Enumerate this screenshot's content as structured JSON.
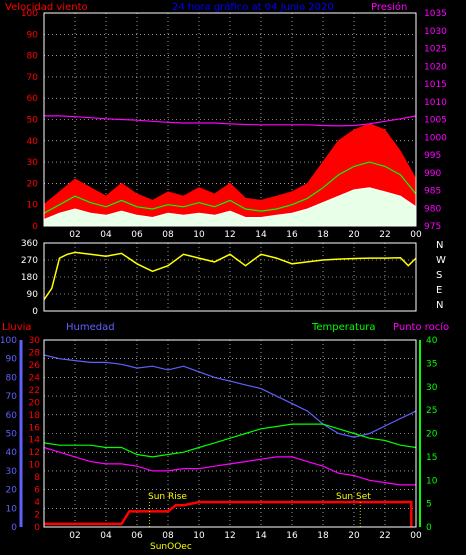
{
  "top_labels": {
    "wind": "Velocidad viento",
    "title": "24 hora gráfico at 04 Junio 2020",
    "pressure": "Presión"
  },
  "compass": [
    "N",
    "W",
    "S",
    "E",
    "N"
  ],
  "bottom_labels": {
    "rain": "Lluvia",
    "humidity": "Humedad",
    "temperature": "Temperatura",
    "dewpoint": "Punto rocío",
    "sunrise": "Sun Rise",
    "sunset": "Sun Set",
    "suncross": "SunOOec"
  },
  "colors": {
    "wind": "#ff0000",
    "title": "#0000ff",
    "pressure": "#ff00ff",
    "gust": "#ff0000",
    "avg": "#00ff00",
    "speed": "#ffffff",
    "direction": "#ffff00",
    "rain": "#ff0000",
    "humidity": "#6060ff",
    "temperature": "#00ff00",
    "dewpoint": "#ff00ff",
    "sun": "#ffff00"
  },
  "chart_data": [
    {
      "type": "line",
      "name": "wind-pressure",
      "x_ticks": [
        "02",
        "04",
        "06",
        "08",
        "10",
        "12",
        "14",
        "16",
        "18",
        "20",
        "22",
        "00"
      ],
      "y_left_ticks": [
        "0",
        "10",
        "20",
        "30",
        "40",
        "50",
        "60",
        "70",
        "80",
        "90",
        "100"
      ],
      "y_right_ticks": [
        "975",
        "980",
        "985",
        "990",
        "995",
        "1000",
        "1005",
        "1010",
        "1015",
        "1020",
        "1025",
        "1030",
        "1035"
      ],
      "ylim_left": [
        0,
        100
      ],
      "ylim_right": [
        975,
        1035
      ],
      "xlim": [
        0,
        24
      ],
      "series": [
        {
          "name": "Presión",
          "axis": "right",
          "x": [
            0,
            1,
            2,
            3,
            4,
            5,
            6,
            7,
            8,
            9,
            10,
            11,
            12,
            13,
            14,
            15,
            16,
            17,
            18,
            19,
            20,
            21,
            22,
            23,
            24
          ],
          "values": [
            1006,
            1006,
            1005.8,
            1005.5,
            1005.2,
            1005,
            1004.8,
            1004.5,
            1004.2,
            1004,
            1004,
            1004,
            1003.8,
            1003.6,
            1003.5,
            1003.5,
            1003.5,
            1003.5,
            1003.3,
            1003.2,
            1003.3,
            1003.8,
            1004.5,
            1005.2,
            1006
          ]
        },
        {
          "name": "gust",
          "axis": "left",
          "x": [
            0,
            1,
            2,
            3,
            4,
            5,
            6,
            7,
            8,
            9,
            10,
            11,
            12,
            13,
            14,
            15,
            16,
            17,
            18,
            19,
            20,
            21,
            22,
            23,
            24
          ],
          "values": [
            10,
            16,
            22,
            18,
            14,
            20,
            15,
            12,
            16,
            14,
            18,
            15,
            20,
            13,
            12,
            14,
            16,
            20,
            30,
            40,
            45,
            48,
            45,
            35,
            22
          ]
        },
        {
          "name": "average",
          "axis": "left",
          "x": [
            0,
            1,
            2,
            3,
            4,
            5,
            6,
            7,
            8,
            9,
            10,
            11,
            12,
            13,
            14,
            15,
            16,
            17,
            18,
            19,
            20,
            21,
            22,
            23,
            24
          ],
          "values": [
            6,
            10,
            14,
            11,
            9,
            12,
            9,
            8,
            10,
            9,
            11,
            9,
            12,
            8,
            7,
            8,
            10,
            13,
            18,
            24,
            28,
            30,
            28,
            24,
            15
          ]
        },
        {
          "name": "speed",
          "axis": "left",
          "x": [
            0,
            1,
            2,
            3,
            4,
            5,
            6,
            7,
            8,
            9,
            10,
            11,
            12,
            13,
            14,
            15,
            16,
            17,
            18,
            19,
            20,
            21,
            22,
            23,
            24
          ],
          "values": [
            3,
            6,
            8,
            6,
            5,
            7,
            5,
            4,
            6,
            5,
            6,
            5,
            7,
            4,
            4,
            5,
            6,
            8,
            11,
            14,
            17,
            18,
            16,
            14,
            9
          ]
        }
      ]
    },
    {
      "type": "line",
      "name": "wind-direction",
      "x_ticks": [
        "02",
        "04",
        "06",
        "08",
        "10",
        "12",
        "14",
        "16",
        "18",
        "20",
        "22",
        "00"
      ],
      "y_ticks": [
        "0",
        "90",
        "180",
        "270",
        "360"
      ],
      "ylim": [
        0,
        360
      ],
      "xlim": [
        0,
        24
      ],
      "series": [
        {
          "name": "direction",
          "x": [
            0,
            0.5,
            1,
            1.5,
            2,
            3,
            4,
            5,
            6,
            7,
            8,
            9,
            10,
            11,
            12,
            13,
            14,
            15,
            16,
            17,
            18,
            19,
            20,
            21,
            22,
            23,
            23.5,
            24
          ],
          "values": [
            60,
            120,
            280,
            300,
            310,
            300,
            290,
            305,
            250,
            210,
            240,
            300,
            280,
            260,
            300,
            240,
            300,
            280,
            250,
            260,
            270,
            275,
            278,
            280,
            280,
            282,
            240,
            280
          ]
        }
      ]
    },
    {
      "type": "line",
      "name": "rain-humidity-temperature",
      "x_ticks": [
        "02",
        "04",
        "06",
        "08",
        "10",
        "12",
        "14",
        "16",
        "18",
        "20",
        "22",
        "00"
      ],
      "y_humidity_ticks": [
        "0",
        "10",
        "20",
        "30",
        "40",
        "50",
        "60",
        "70",
        "80",
        "90",
        "100"
      ],
      "y_rain_ticks": [
        "0",
        "2",
        "4",
        "6",
        "8",
        "10",
        "12",
        "14",
        "16",
        "18",
        "20",
        "22",
        "24",
        "26",
        "28",
        "30"
      ],
      "y_right_ticks": [
        "0",
        "5",
        "10",
        "15",
        "20",
        "25",
        "30",
        "35",
        "40"
      ],
      "ylim_humidity": [
        0,
        100
      ],
      "ylim_rain": [
        0,
        30
      ],
      "ylim_right": [
        0,
        40
      ],
      "xlim": [
        0,
        24
      ],
      "series": [
        {
          "name": "Humedad",
          "axis": "humidity",
          "x": [
            0,
            1,
            2,
            3,
            4,
            5,
            6,
            7,
            8,
            9,
            10,
            11,
            12,
            13,
            14,
            15,
            16,
            17,
            18,
            19,
            20,
            21,
            22,
            23,
            24
          ],
          "values": [
            92,
            90,
            89,
            88,
            88,
            87,
            85,
            86,
            84,
            86,
            83,
            80,
            78,
            76,
            74,
            70,
            66,
            62,
            55,
            50,
            48,
            50,
            54,
            58,
            62
          ]
        },
        {
          "name": "Temperatura",
          "axis": "right",
          "x": [
            0,
            1,
            2,
            3,
            4,
            5,
            6,
            7,
            8,
            9,
            10,
            11,
            12,
            13,
            14,
            15,
            16,
            17,
            18,
            19,
            20,
            21,
            22,
            23,
            24
          ],
          "values": [
            18,
            17.5,
            17.5,
            17.5,
            17,
            17,
            15.5,
            15,
            15.5,
            16,
            17,
            18,
            19,
            20,
            21,
            21.5,
            22,
            22,
            22,
            21,
            20,
            19,
            18.5,
            17.5,
            17
          ]
        },
        {
          "name": "Punto rocío",
          "axis": "right",
          "x": [
            0,
            1,
            2,
            3,
            4,
            5,
            6,
            7,
            8,
            9,
            10,
            11,
            12,
            13,
            14,
            15,
            16,
            17,
            18,
            19,
            20,
            21,
            22,
            23,
            24
          ],
          "values": [
            17,
            16,
            15,
            14,
            13.5,
            13.5,
            13,
            12,
            12,
            12.5,
            12.5,
            13,
            13.5,
            14,
            14.5,
            15,
            15,
            14,
            13,
            11.5,
            11,
            10,
            9.5,
            9,
            9
          ]
        },
        {
          "name": "Lluvia",
          "axis": "rain",
          "x": [
            0,
            1,
            2,
            3,
            4,
            5,
            5.5,
            6,
            7,
            8,
            8.5,
            9,
            10,
            11,
            12,
            13,
            14,
            15,
            16,
            17,
            18,
            19,
            20,
            21,
            22,
            23,
            23.7,
            23.7
          ],
          "values": [
            0.5,
            0.5,
            0.5,
            0.5,
            0.5,
            0.5,
            2.5,
            2.5,
            2.5,
            2.5,
            3.5,
            3.5,
            4,
            4,
            4,
            4,
            4,
            4,
            4,
            4,
            4,
            4,
            4,
            4,
            4,
            4,
            4,
            0
          ]
        }
      ],
      "events": [
        {
          "label": "Sun Rise",
          "x": 6.8
        },
        {
          "label": "Sun Set",
          "x": 20.4
        }
      ]
    }
  ]
}
